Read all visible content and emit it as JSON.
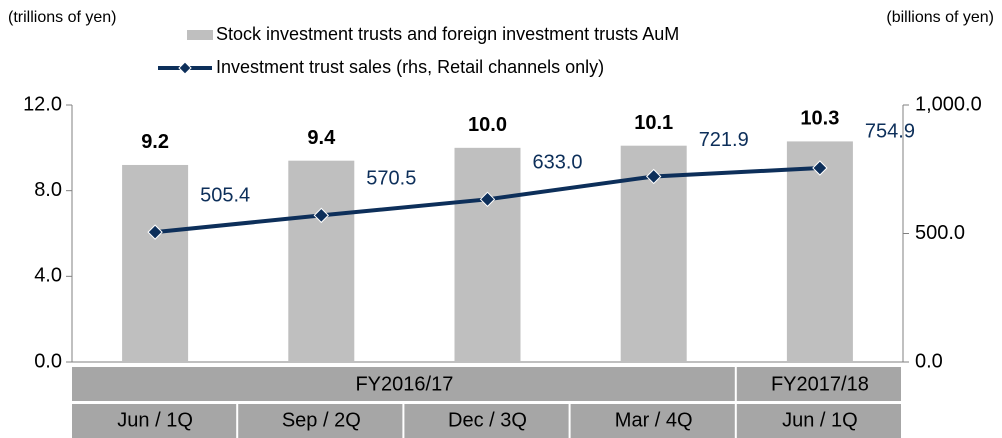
{
  "chart_data": {
    "type": "bar_line",
    "left_unit": "(trillions of yen)",
    "right_unit": "(billions of yen)",
    "groups": [
      {
        "label": "FY2016/17",
        "span": 4
      },
      {
        "label": "FY2017/18",
        "span": 1
      }
    ],
    "categories": [
      "Jun / 1Q",
      "Sep / 2Q",
      "Dec / 3Q",
      "Mar / 4Q",
      "Jun / 1Q"
    ],
    "series": [
      {
        "name": "Stock investment trusts and foreign investment trusts AuM",
        "type": "bar",
        "color": "#bfbfbf",
        "values": [
          9.2,
          9.4,
          10.0,
          10.1,
          10.3
        ],
        "value_labels": [
          "9.2",
          "9.4",
          "10.0",
          "10.1",
          "10.3"
        ]
      },
      {
        "name": "Investment trust sales (rhs, Retail channels only)",
        "type": "line",
        "axis": "y2",
        "color": "#0d2f5a",
        "values": [
          505.4,
          570.5,
          633.0,
          721.9,
          754.9
        ],
        "value_labels": [
          "505.4",
          "570.5",
          "633.0",
          "721.9",
          "754.9"
        ]
      }
    ],
    "ylim": [
      0,
      12
    ],
    "yticks": [
      {
        "value": 0,
        "label": "0.0"
      },
      {
        "value": 4,
        "label": "4.0"
      },
      {
        "value": 8,
        "label": "8.0"
      },
      {
        "value": 12,
        "label": "12.0"
      }
    ],
    "y2lim": [
      0,
      1000
    ],
    "y2ticks": [
      {
        "value": 0,
        "label": "0.0"
      },
      {
        "value": 500,
        "label": "500.0"
      },
      {
        "value": 1000,
        "label": "1,000.0"
      }
    ]
  }
}
